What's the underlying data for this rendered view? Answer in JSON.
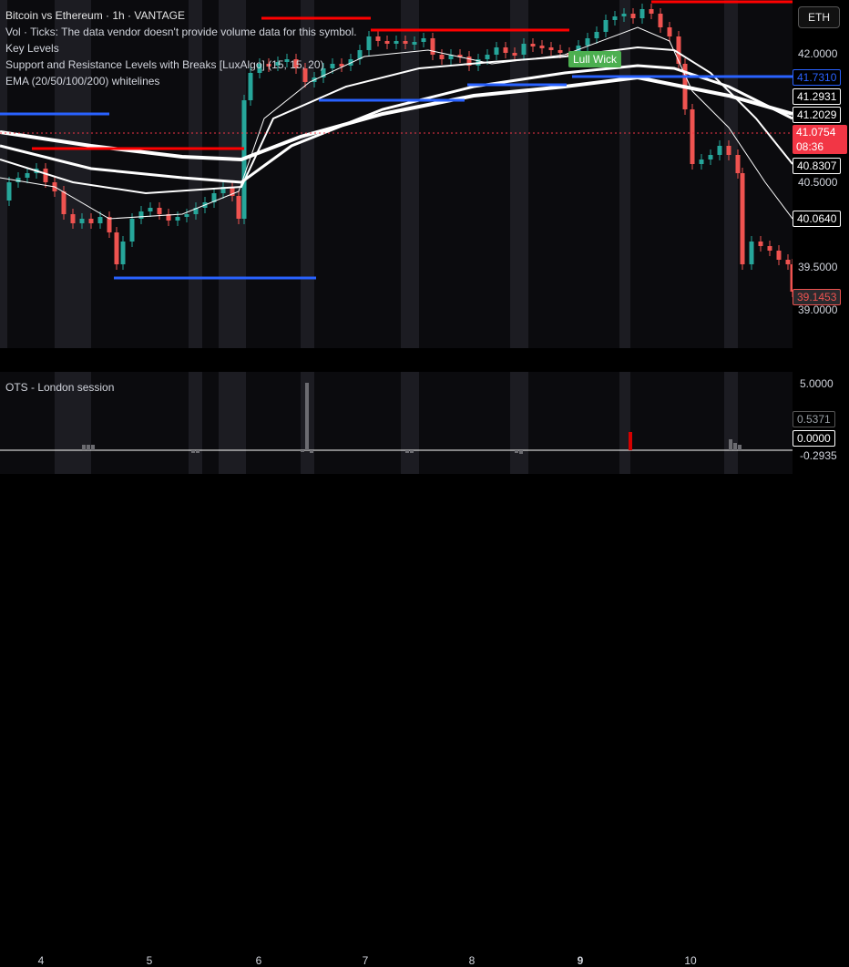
{
  "legend": {
    "title": "Bitcoin vs Ethereum · 1h · VANTAGE",
    "line1": "Vol · Ticks: The data vendor doesn't provide volume data for this symbol.",
    "line2": "Key Levels",
    "line3": " Support and Resistance Levels with Breaks [LuxAlgo] (15, 15, 20)",
    "line4": "EMA (20/50/100/200) whitelines"
  },
  "symbol_button": "ETH",
  "lull_label": "Lull Wick",
  "osc_title": "OTS - London session",
  "price_ticks": [
    "42.0000",
    "40.5000",
    "39.5000",
    "39.0000"
  ],
  "price_tags": {
    "blue_level": "41.7310",
    "ema1": "41.2931",
    "ema2": "41.2029",
    "last_price": "41.0754",
    "countdown": "08:36",
    "ema3": "40.8307",
    "ema4": "40.0640",
    "low_tag": "39.1453"
  },
  "osc_ticks": [
    "5.0000",
    "0.5371",
    "0.0000",
    "-0.2935"
  ],
  "time_ticks": [
    "4",
    "5",
    "6",
    "7",
    "8",
    "9",
    "10"
  ],
  "colors": {
    "bull": "#26a69a",
    "bear": "#ef5350",
    "resistance": "#ff0000",
    "support": "#2962ff",
    "ema": "#ffffff",
    "last_price": "#f23645"
  }
}
